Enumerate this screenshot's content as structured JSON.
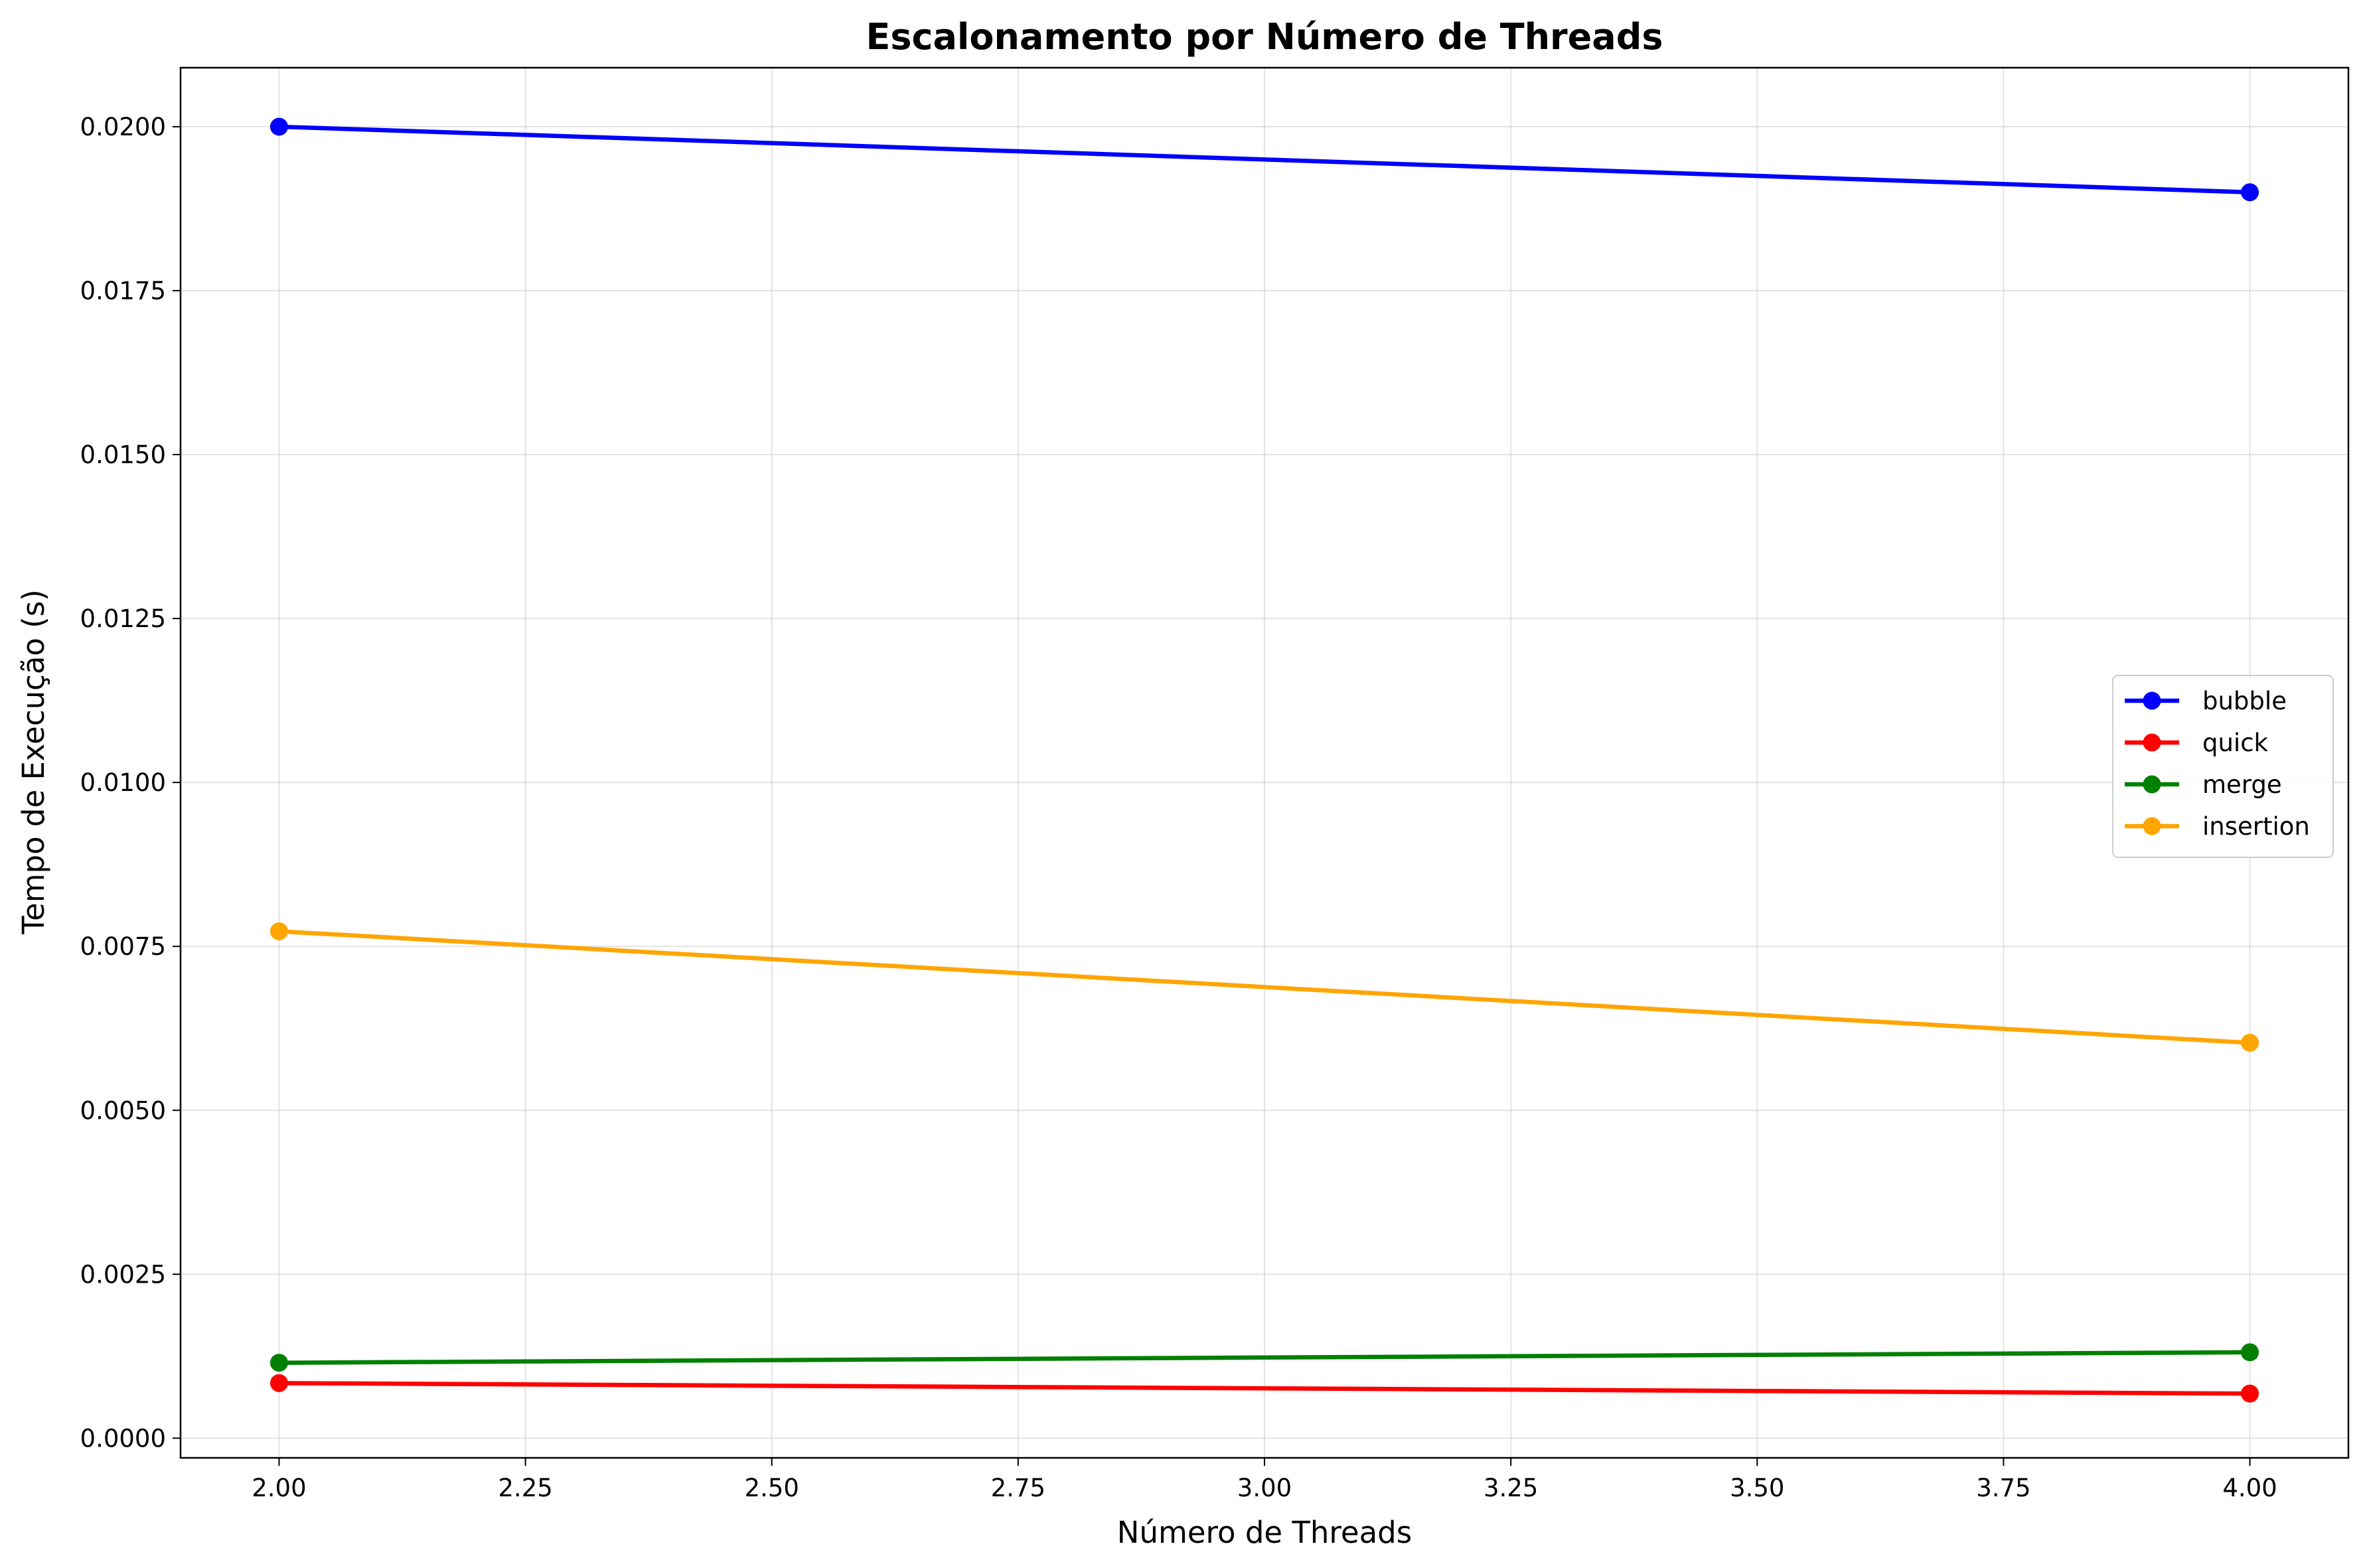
{
  "chart_data": {
    "type": "line",
    "title": "Escalonamento por Número de Threads",
    "xlabel": "Número de Threads",
    "ylabel": "Tempo de Execução (s)",
    "xlim": [
      1.9,
      4.1
    ],
    "ylim": [
      -0.0003,
      0.0209
    ],
    "x_ticks": [
      "2.00",
      "2.25",
      "2.50",
      "2.75",
      "3.00",
      "3.25",
      "3.50",
      "3.75",
      "4.00"
    ],
    "x_tick_values": [
      2.0,
      2.25,
      2.5,
      2.75,
      3.0,
      3.25,
      3.5,
      3.75,
      4.0
    ],
    "y_ticks": [
      "0.0000",
      "0.0025",
      "0.0050",
      "0.0075",
      "0.0100",
      "0.0125",
      "0.0150",
      "0.0175",
      "0.0200"
    ],
    "y_tick_values": [
      0.0,
      0.0025,
      0.005,
      0.0075,
      0.01,
      0.0125,
      0.015,
      0.0175,
      0.02
    ],
    "grid": true,
    "legend_position": "center-right",
    "x": [
      2,
      4
    ],
    "series": [
      {
        "name": "bubble",
        "color": "#0000ff",
        "values": [
          0.02,
          0.019
        ]
      },
      {
        "name": "quick",
        "color": "#ff0000",
        "values": [
          0.00084,
          0.00068
        ]
      },
      {
        "name": "merge",
        "color": "#008000",
        "values": [
          0.00115,
          0.00131
        ]
      },
      {
        "name": "insertion",
        "color": "#ffa500",
        "values": [
          0.00773,
          0.00603
        ]
      }
    ]
  }
}
